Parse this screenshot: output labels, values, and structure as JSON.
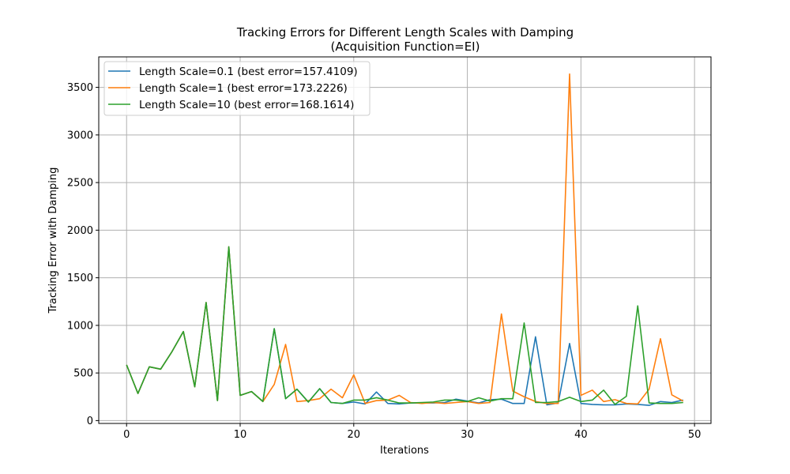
{
  "chart_data": {
    "type": "line",
    "title": "Tracking Errors for Different Length Scales  with Damping",
    "subtitle": "(Acquisition Function=EI)",
    "xlabel": "Iterations",
    "ylabel": "Tracking Error  with Damping",
    "xlim": [
      -2.45,
      51.45
    ],
    "ylim": [
      -30,
      3820
    ],
    "xticks": [
      0,
      10,
      20,
      30,
      40,
      50
    ],
    "yticks": [
      0,
      500,
      1000,
      1500,
      2000,
      2500,
      3000,
      3500
    ],
    "grid": true,
    "legend_position": "top-left",
    "x": [
      0,
      1,
      2,
      3,
      4,
      5,
      6,
      7,
      8,
      9,
      10,
      11,
      12,
      13,
      14,
      15,
      16,
      17,
      18,
      19,
      20,
      21,
      22,
      23,
      24,
      25,
      26,
      27,
      28,
      29,
      30,
      31,
      32,
      33,
      34,
      35,
      36,
      37,
      38,
      39,
      40,
      41,
      42,
      43,
      44,
      45,
      46,
      47,
      48,
      49
    ],
    "series": [
      {
        "name": "Length Scale=0.1 (best error=157.4109)",
        "color": "#1f77b4",
        "values": [
          585,
          285,
          565,
          540,
          725,
          935,
          355,
          1240,
          210,
          1825,
          265,
          305,
          200,
          965,
          230,
          330,
          195,
          335,
          190,
          180,
          195,
          175,
          300,
          180,
          175,
          185,
          185,
          185,
          190,
          225,
          205,
          185,
          220,
          225,
          180,
          180,
          880,
          165,
          185,
          810,
          180,
          170,
          165,
          165,
          175,
          170,
          160,
          200,
          190,
          215
        ]
      },
      {
        "name": "Length Scale=1 (best error=173.2226)",
        "color": "#ff7f0e",
        "values": [
          585,
          285,
          565,
          540,
          725,
          935,
          355,
          1240,
          210,
          1825,
          265,
          305,
          200,
          380,
          800,
          200,
          210,
          230,
          330,
          240,
          480,
          180,
          210,
          215,
          265,
          190,
          180,
          190,
          180,
          190,
          200,
          180,
          190,
          1120,
          310,
          250,
          200,
          180,
          180,
          3640,
          265,
          320,
          200,
          220,
          180,
          175,
          330,
          860,
          270,
          205
        ]
      },
      {
        "name": "Length Scale=10 (best error=168.1614)",
        "color": "#2ca02c",
        "values": [
          585,
          285,
          565,
          540,
          725,
          935,
          355,
          1240,
          210,
          1825,
          265,
          305,
          200,
          965,
          230,
          330,
          195,
          335,
          190,
          180,
          215,
          215,
          240,
          215,
          185,
          185,
          190,
          195,
          215,
          215,
          200,
          240,
          205,
          230,
          230,
          1025,
          190,
          190,
          200,
          245,
          200,
          215,
          320,
          170,
          255,
          1205,
          185,
          180,
          180,
          190
        ]
      }
    ]
  }
}
